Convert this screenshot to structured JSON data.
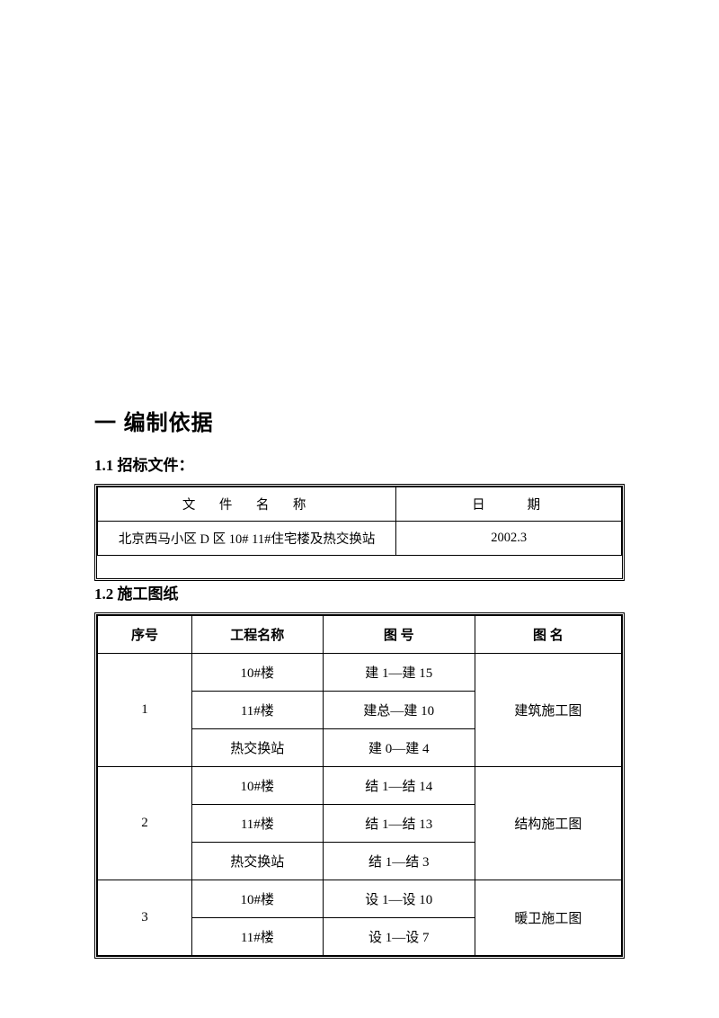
{
  "heading1": "一 编制依据",
  "section1": {
    "title": "1.1 招标文件：",
    "table": {
      "headers": {
        "col1": "文　件　名　称",
        "col2": "日　　期"
      },
      "row": {
        "name": "北京西马小区 D 区 10# 11#住宅楼及热交换站",
        "date": "2002.3"
      }
    }
  },
  "section2": {
    "title": "1.2  施工图纸",
    "table": {
      "headers": {
        "c1": "序号",
        "c2": "工程名称",
        "c3": "图      号",
        "c4": "图      名"
      },
      "groups": [
        {
          "seq": "1",
          "rows": [
            {
              "name": "10#楼",
              "num": "建 1—建 15"
            },
            {
              "name": "11#楼",
              "num": "建总—建 10"
            },
            {
              "name": "热交换站",
              "num": "建 0—建 4"
            }
          ],
          "drawing": "建筑施工图"
        },
        {
          "seq": "2",
          "rows": [
            {
              "name": "10#楼",
              "num": "结 1—结 14"
            },
            {
              "name": "11#楼",
              "num": "结 1—结 13"
            },
            {
              "name": "热交换站",
              "num": "结 1—结 3"
            }
          ],
          "drawing": "结构施工图"
        },
        {
          "seq": "3",
          "rows": [
            {
              "name": "10#楼",
              "num": "设 1—设 10"
            },
            {
              "name": "11#楼",
              "num": "设 1—设 7"
            }
          ],
          "drawing": "暖卫施工图"
        }
      ]
    }
  },
  "colors": {
    "text": "#000000",
    "bg": "#ffffff",
    "border": "#000000"
  }
}
